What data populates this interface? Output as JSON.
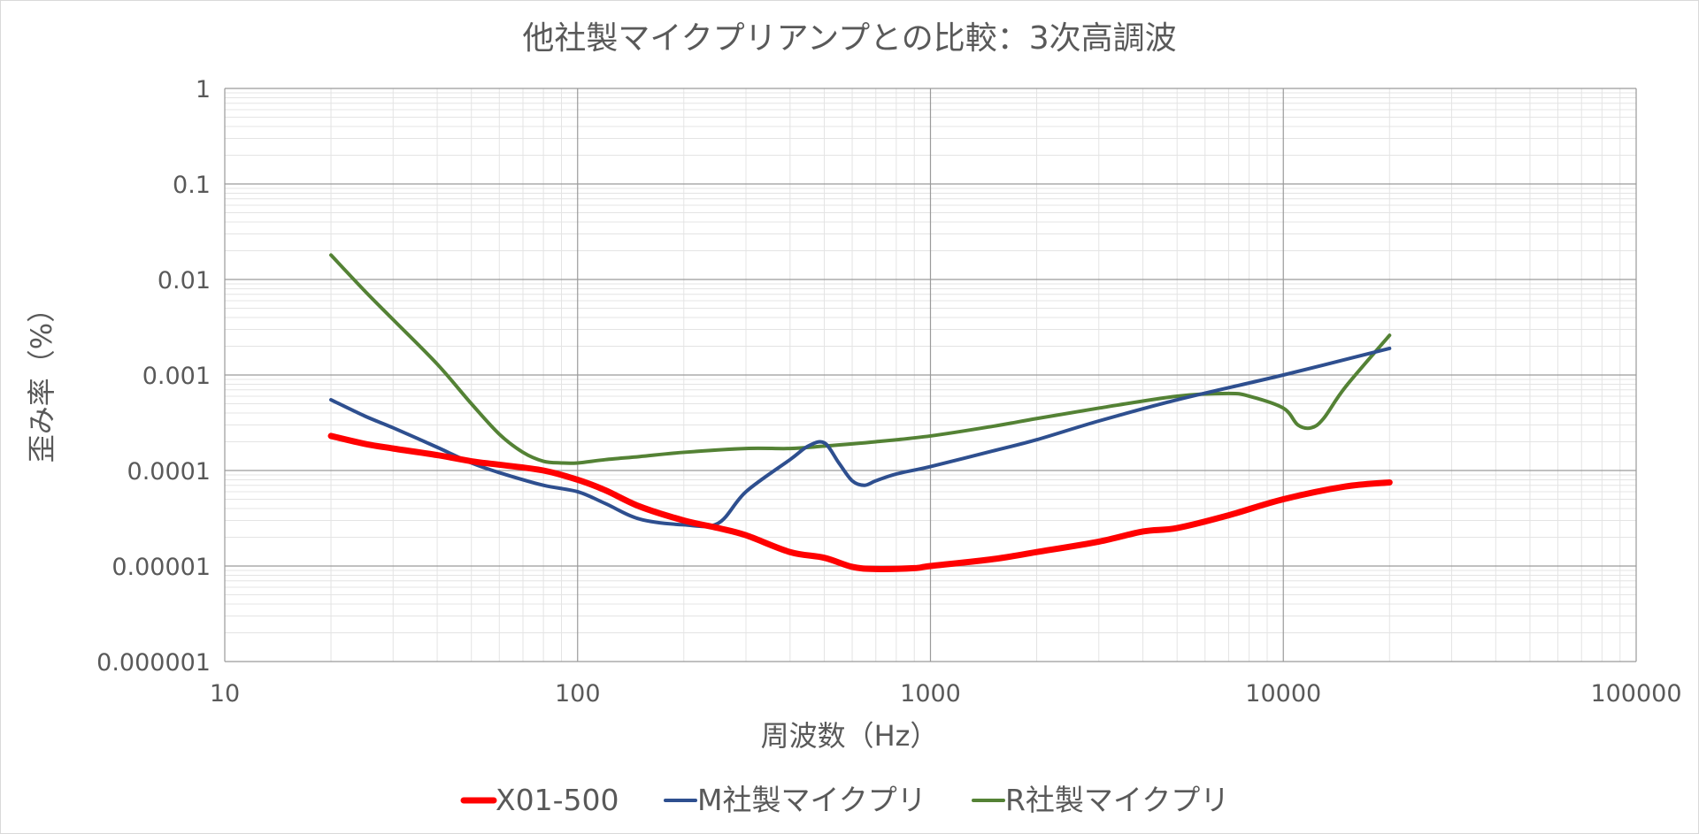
{
  "chart_data": {
    "type": "line",
    "title": "他社製マイクプリアンプとの比較：3次高調波",
    "xlabel": "周波数（Hz）",
    "ylabel": "歪み率（%）",
    "xscale": "log",
    "yscale": "log",
    "xlim": [
      10,
      100000
    ],
    "ylim": [
      1e-06,
      1
    ],
    "grid": true,
    "legend": "bottom",
    "x_ticks": [
      "10",
      "100",
      "1000",
      "10000",
      "100000"
    ],
    "y_ticks": [
      "1",
      "0.1",
      "0.01",
      "0.001",
      "0.0001",
      "0.00001",
      "0.000001"
    ],
    "series": [
      {
        "name": "X01-500",
        "color": "#ff0000",
        "x": [
          20,
          25,
          30,
          40,
          50,
          60,
          80,
          100,
          120,
          150,
          200,
          250,
          300,
          400,
          500,
          600,
          700,
          900,
          1000,
          1500,
          2000,
          3000,
          4000,
          5000,
          7000,
          10000,
          15000,
          20000
        ],
        "y": [
          0.00023,
          0.00019,
          0.00017,
          0.000145,
          0.000125,
          0.000115,
          0.0001,
          8e-05,
          6.2e-05,
          4.2e-05,
          3e-05,
          2.5e-05,
          2.1e-05,
          1.4e-05,
          1.22e-05,
          9.8e-06,
          9.3e-06,
          9.5e-06,
          1e-05,
          1.18e-05,
          1.4e-05,
          1.8e-05,
          2.3e-05,
          2.5e-05,
          3.4e-05,
          5e-05,
          6.8e-05,
          7.5e-05
        ]
      },
      {
        "name": "M社製マイクプリ",
        "color": "#2e4f8f",
        "x": [
          20,
          25,
          30,
          40,
          50,
          60,
          80,
          100,
          120,
          150,
          200,
          250,
          300,
          400,
          450,
          500,
          550,
          600,
          650,
          700,
          800,
          1000,
          1500,
          2000,
          3000,
          5000,
          10000,
          20000
        ],
        "y": [
          0.00055,
          0.00037,
          0.00028,
          0.000175,
          0.00012,
          9.5e-05,
          7e-05,
          6e-05,
          4.5e-05,
          3.1e-05,
          2.7e-05,
          2.8e-05,
          6e-05,
          0.00013,
          0.00018,
          0.000195,
          0.00012,
          7.8e-05,
          7e-05,
          7.8e-05,
          9.2e-05,
          0.00011,
          0.00016,
          0.00021,
          0.00033,
          0.00055,
          0.001,
          0.0019
        ]
      },
      {
        "name": "R社製マイクプリ",
        "color": "#548235",
        "x": [
          20,
          25,
          30,
          40,
          50,
          60,
          70,
          80,
          90,
          100,
          120,
          150,
          200,
          300,
          400,
          500,
          700,
          1000,
          1500,
          2000,
          3000,
          5000,
          7000,
          8000,
          10000,
          11000,
          12000,
          13000,
          15000,
          20000
        ],
        "y": [
          0.018,
          0.0075,
          0.0038,
          0.0013,
          0.0005,
          0.00024,
          0.000155,
          0.000125,
          0.00012,
          0.00012,
          0.00013,
          0.00014,
          0.000155,
          0.00017,
          0.00017,
          0.00018,
          0.0002,
          0.00023,
          0.00029,
          0.00035,
          0.00045,
          0.0006,
          0.00064,
          0.0006,
          0.00045,
          0.0003,
          0.00028,
          0.00035,
          0.00075,
          0.0026
        ]
      }
    ]
  }
}
